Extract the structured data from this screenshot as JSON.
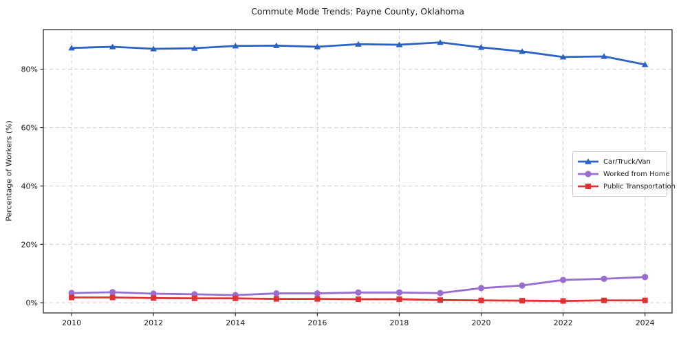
{
  "chart_data": {
    "type": "line",
    "title": "Commute Mode Trends: Payne County, Oklahoma",
    "xlabel": "",
    "ylabel": "Percentage of Workers (%)",
    "x": [
      2010,
      2011,
      2012,
      2013,
      2014,
      2015,
      2016,
      2017,
      2018,
      2019,
      2020,
      2021,
      2022,
      2023,
      2024
    ],
    "xticks": [
      2010,
      2012,
      2014,
      2016,
      2018,
      2020,
      2022,
      2024
    ],
    "yticks": [
      0,
      20,
      40,
      60,
      80
    ],
    "ytick_labels": [
      "0%",
      "20%",
      "40%",
      "60%",
      "80%"
    ],
    "xlim": [
      2009.31,
      2024.66
    ],
    "ylim": [
      -3.5,
      93.6
    ],
    "grid": true,
    "grid_style": "dashed",
    "legend_position": "center right",
    "series": [
      {
        "name": "Car/Truck/Van",
        "color": "#2b62c6",
        "marker": "triangle",
        "values": [
          87.3,
          87.7,
          87.0,
          87.2,
          88.0,
          88.1,
          87.7,
          88.6,
          88.4,
          89.2,
          87.5,
          86.1,
          84.2,
          84.4,
          81.6
        ]
      },
      {
        "name": "Worked from Home",
        "color": "#9a6ed1",
        "marker": "circle",
        "values": [
          3.3,
          3.6,
          3.1,
          2.9,
          2.6,
          3.2,
          3.2,
          3.5,
          3.5,
          3.3,
          5.0,
          5.9,
          7.8,
          8.2,
          8.8
        ]
      },
      {
        "name": "Public Transportation",
        "color": "#e03232",
        "marker": "square",
        "values": [
          1.8,
          1.8,
          1.6,
          1.5,
          1.5,
          1.3,
          1.3,
          1.2,
          1.2,
          0.9,
          0.8,
          0.7,
          0.6,
          0.8,
          0.8
        ]
      }
    ],
    "style": {
      "grid_color": "#cfcfcf",
      "spine_color": "#2b2b2b",
      "tick_text_color": "#1a1a1a"
    }
  }
}
